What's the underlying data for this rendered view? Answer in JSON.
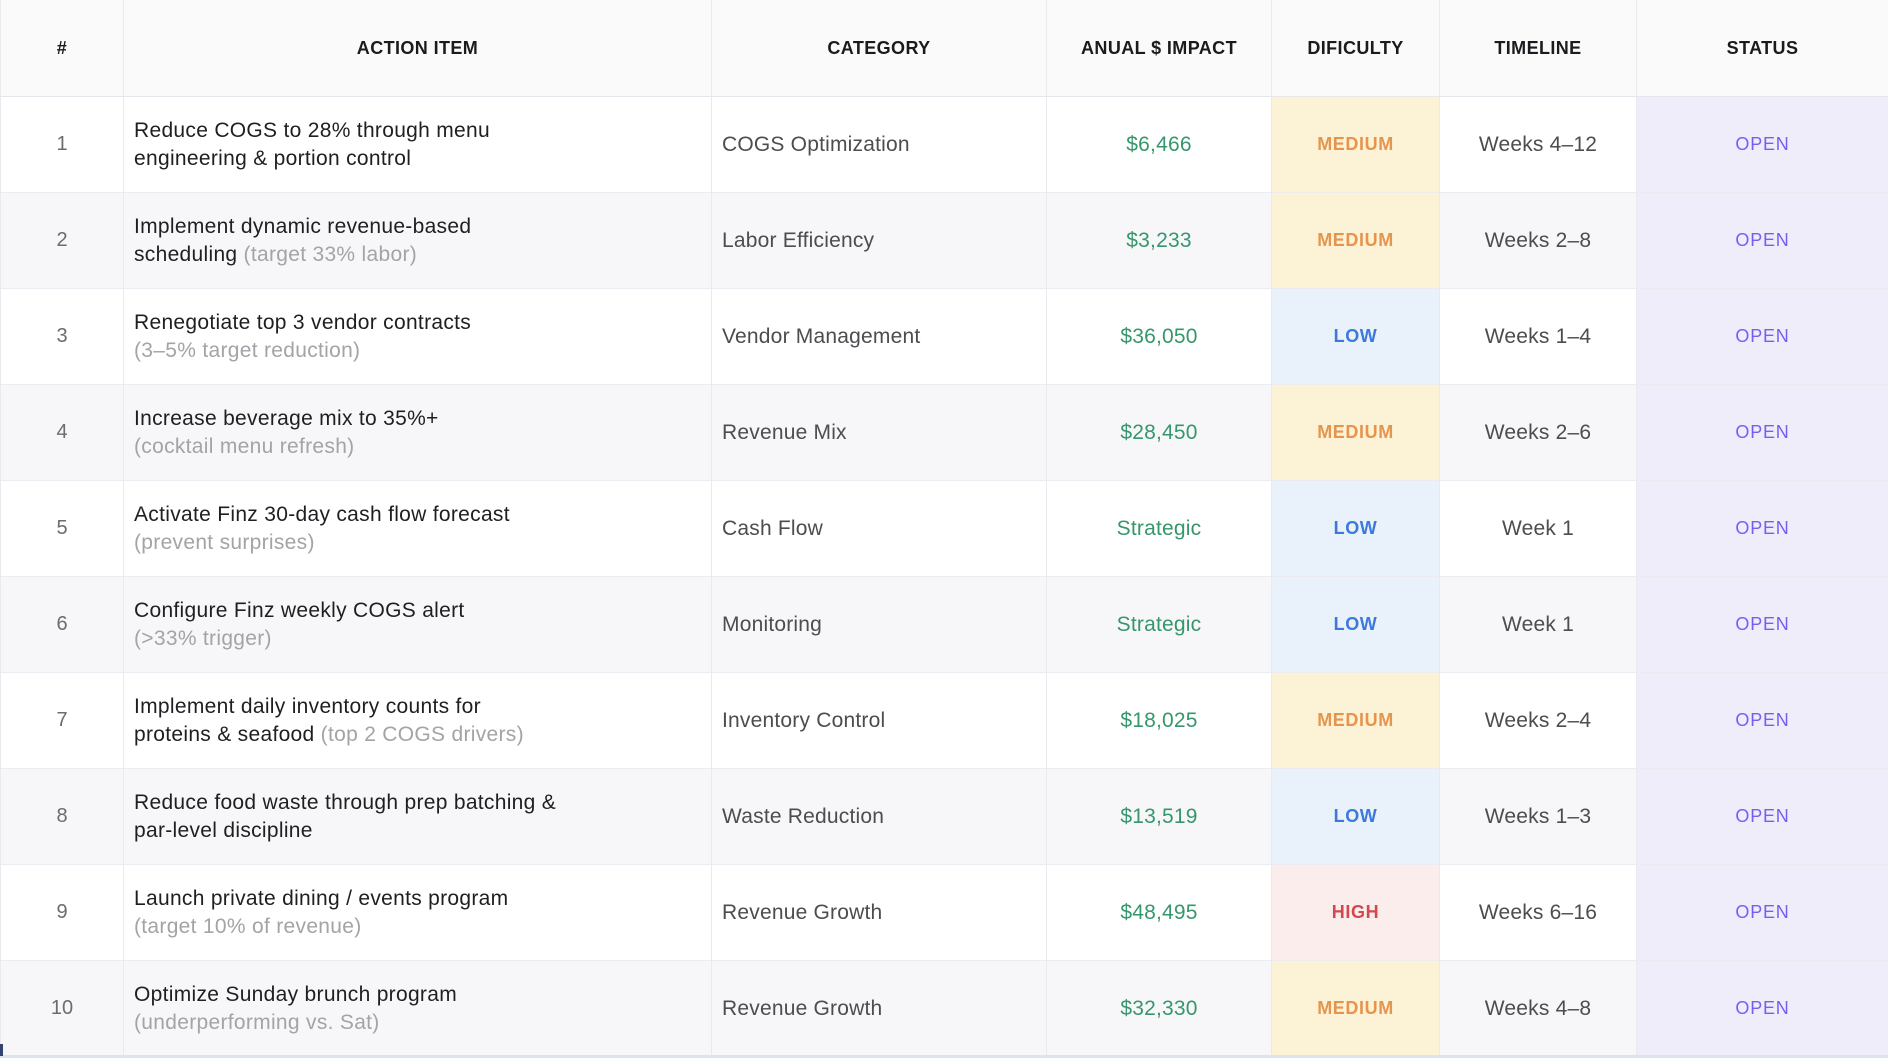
{
  "table": {
    "columns": [
      {
        "label": "#"
      },
      {
        "label": "ACTION ITEM"
      },
      {
        "label": "CATEGORY"
      },
      {
        "label": "ANUAL $ IMPACT"
      },
      {
        "label": "DIFICULTY"
      },
      {
        "label": "TIMELINE"
      },
      {
        "label": "STATUS"
      }
    ],
    "rows": [
      {
        "num": "1",
        "action": "Reduce COGS to 28% through menu engineering & portion control",
        "note": "",
        "note_inline": false,
        "category": "COGS Optimization",
        "impact": "$6,466",
        "difficulty": "MEDIUM",
        "timeline": "Weeks 4–12",
        "status": "OPEN"
      },
      {
        "num": "2",
        "action": "Implement dynamic revenue-based scheduling",
        "note": "(target 33% labor)",
        "note_inline": true,
        "category": "Labor Efficiency",
        "impact": "$3,233",
        "difficulty": "MEDIUM",
        "timeline": "Weeks 2–8",
        "status": "OPEN"
      },
      {
        "num": "3",
        "action": "Renegotiate top 3 vendor contracts",
        "note": "(3–5% target reduction)",
        "note_inline": false,
        "category": "Vendor Management",
        "impact": "$36,050",
        "difficulty": "LOW",
        "timeline": "Weeks 1–4",
        "status": "OPEN"
      },
      {
        "num": "4",
        "action": "Increase beverage mix to 35%+",
        "note": "(cocktail menu refresh)",
        "note_inline": false,
        "category": "Revenue Mix",
        "impact": "$28,450",
        "difficulty": "MEDIUM",
        "timeline": "Weeks 2–6",
        "status": "OPEN"
      },
      {
        "num": "5",
        "action": "Activate Finz 30-day cash flow forecast",
        "note": "(prevent surprises)",
        "note_inline": false,
        "category": "Cash Flow",
        "impact": "Strategic",
        "difficulty": "LOW",
        "timeline": "Week 1",
        "status": "OPEN"
      },
      {
        "num": "6",
        "action": "Configure Finz weekly COGS alert",
        "note": "(>33% trigger)",
        "note_inline": false,
        "category": "Monitoring",
        "impact": "Strategic",
        "difficulty": "LOW",
        "timeline": "Week 1",
        "status": "OPEN"
      },
      {
        "num": "7",
        "action": "Implement daily inventory counts for proteins & seafood",
        "note": "(top 2 COGS drivers)",
        "note_inline": true,
        "category": "Inventory Control",
        "impact": "$18,025",
        "difficulty": "MEDIUM",
        "timeline": "Weeks 2–4",
        "status": "OPEN"
      },
      {
        "num": "8",
        "action": "Reduce food waste through prep batching & par-level discipline",
        "note": "",
        "note_inline": false,
        "category": "Waste Reduction",
        "impact": "$13,519",
        "difficulty": "LOW",
        "timeline": "Weeks 1–3",
        "status": "OPEN"
      },
      {
        "num": "9",
        "action": "Launch private dining / events program",
        "note": "(target 10% of revenue)",
        "note_inline": false,
        "category": "Revenue Growth",
        "impact": "$48,495",
        "difficulty": "HIGH",
        "timeline": "Weeks 6–16",
        "status": "OPEN"
      },
      {
        "num": "10",
        "action": "Optimize Sunday brunch program",
        "note": "(underperforming vs. Sat)",
        "note_inline": false,
        "category": "Revenue Growth",
        "impact": "$32,330",
        "difficulty": "MEDIUM",
        "timeline": "Weeks 4–8",
        "status": "OPEN"
      }
    ]
  },
  "colors": {
    "impact_green": "#36966c",
    "difficulty": {
      "MEDIUM": {
        "text": "#e5954e",
        "bg": "#fcf3d6"
      },
      "LOW": {
        "text": "#3d79dd",
        "bg": "#e9f1fa"
      },
      "HIGH": {
        "text": "#d1494f",
        "bg": "#fbedeb"
      }
    },
    "status": {
      "OPEN": {
        "text": "#7a5cf2",
        "bg": "#eeedf9"
      }
    }
  }
}
